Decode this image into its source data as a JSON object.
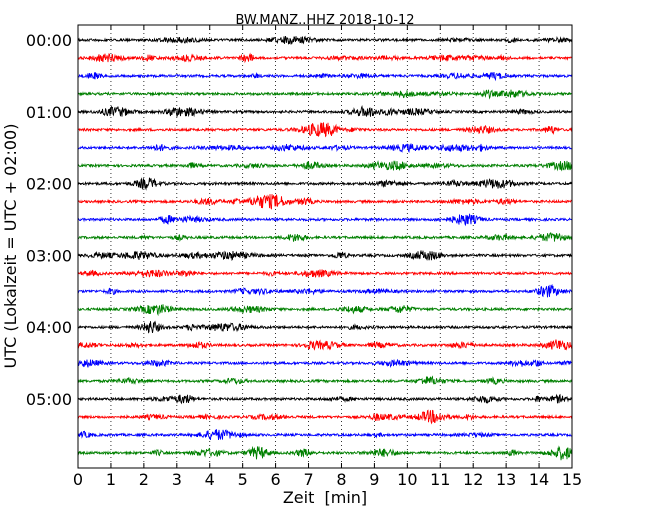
{
  "chart_data": {
    "type": "line",
    "title": "BW.MANZ..HHZ 2018-10-12",
    "xlabel": "Zeit  [min]",
    "ylabel": "UTC (Lokalzeit = UTC + 02:00)",
    "xlim": [
      0,
      15
    ],
    "x_ticks": [
      "0",
      "1",
      "2",
      "3",
      "4",
      "5",
      "6",
      "7",
      "8",
      "9",
      "10",
      "11",
      "12",
      "13",
      "14",
      "15"
    ],
    "y_tick_labels": [
      "00:00",
      "01:00",
      "02:00",
      "03:00",
      "04:00",
      "05:00"
    ],
    "trace_interval_min": 15,
    "trace_count": 24,
    "trace_colors": [
      "#000000",
      "#ff0000",
      "#0000ff",
      "#008000"
    ],
    "vertical_grid": "dotted",
    "start_time": "00:00",
    "end_time": "06:00"
  }
}
